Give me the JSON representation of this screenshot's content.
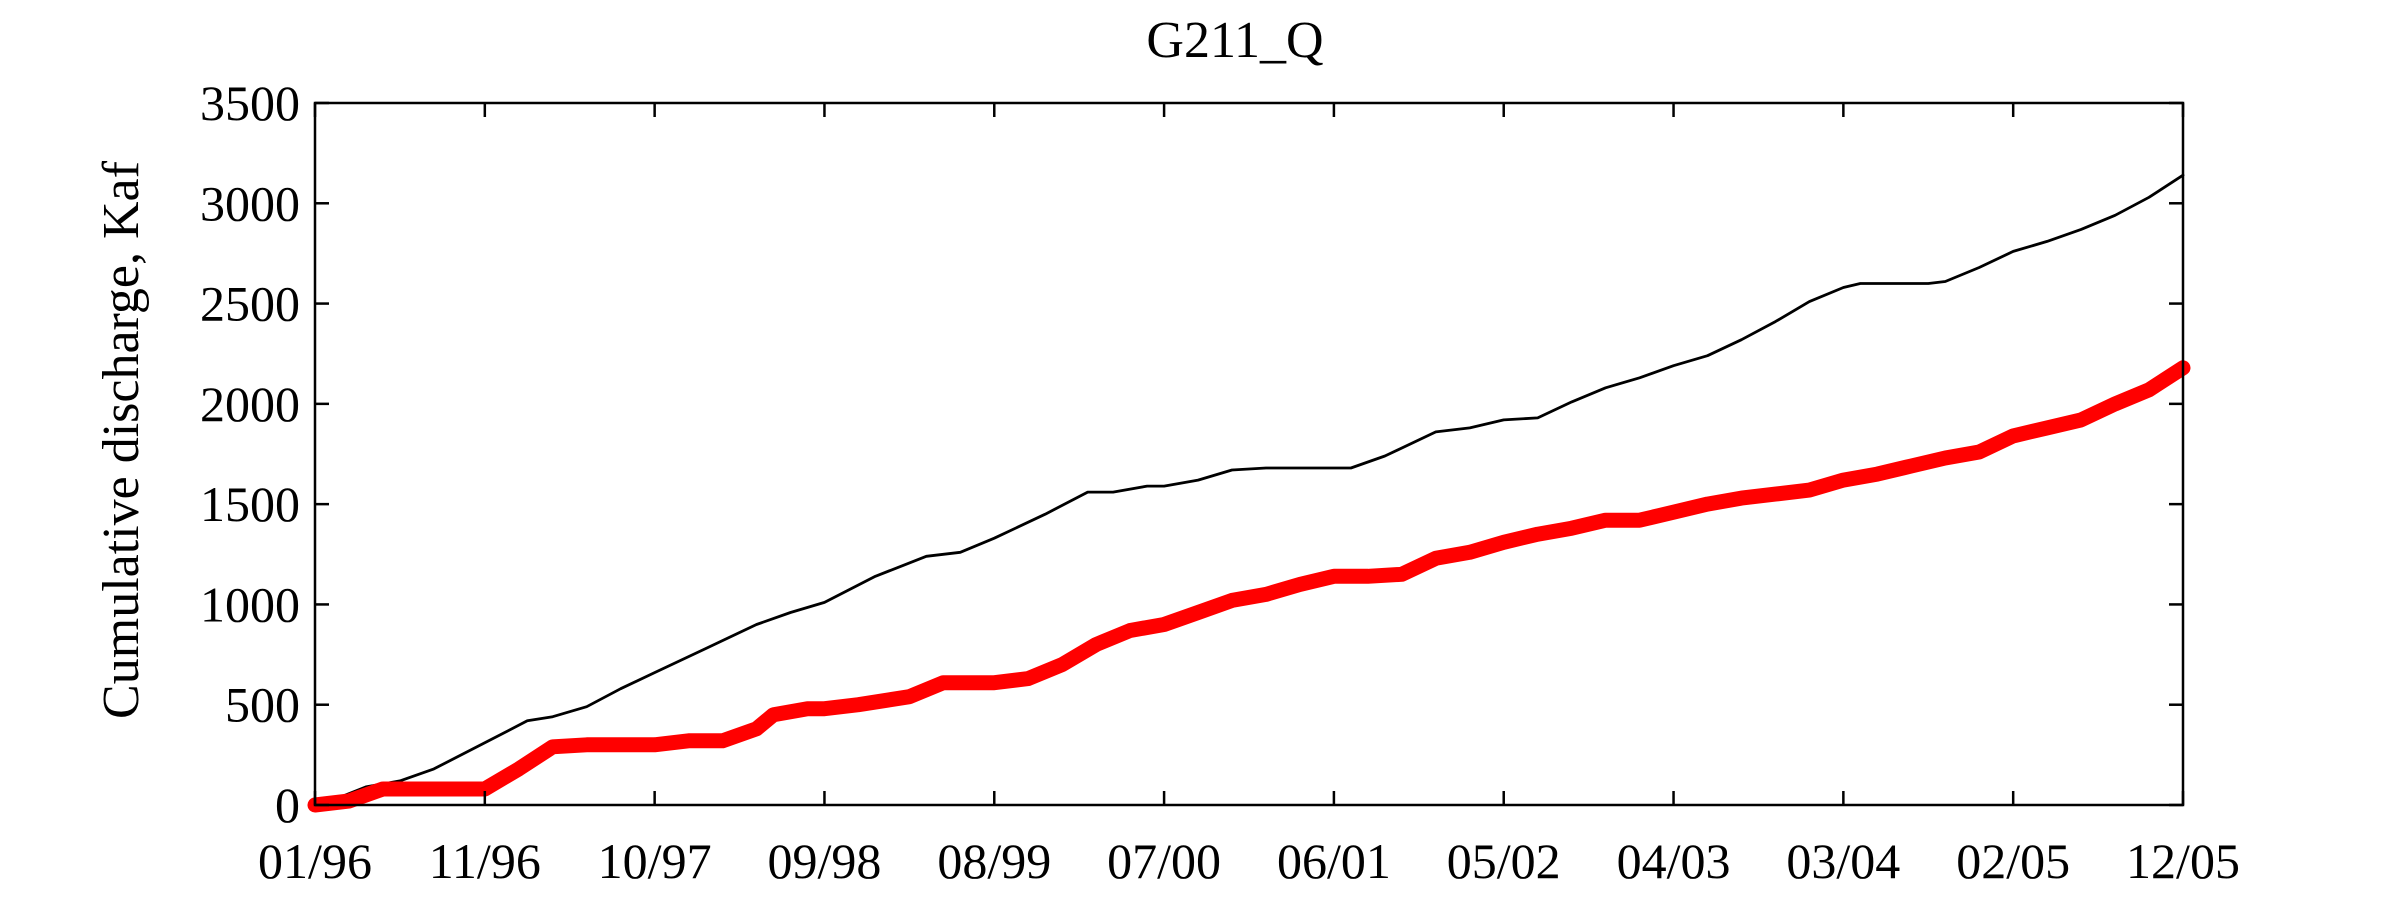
{
  "chart_data": {
    "type": "line",
    "title": "G211_Q",
    "xlabel": "",
    "ylabel": "Cumulative discharge, Kaf",
    "x_tick_labels": [
      "01/96",
      "11/96",
      "10/97",
      "09/98",
      "08/99",
      "07/00",
      "06/01",
      "05/02",
      "04/03",
      "03/04",
      "02/05",
      "12/05"
    ],
    "y_ticks": [
      0,
      500,
      1000,
      1500,
      2000,
      2500,
      3000,
      3500
    ],
    "xlim": [
      0,
      11
    ],
    "ylim": [
      0,
      3500
    ],
    "grid": false,
    "series": [
      {
        "color": "#000000",
        "x": [
          0,
          0.15,
          0.3,
          0.5,
          0.7,
          1.0,
          1.25,
          1.4,
          1.6,
          1.8,
          2.0,
          2.3,
          2.6,
          2.8,
          3.0,
          3.3,
          3.6,
          3.8,
          4.0,
          4.3,
          4.55,
          4.7,
          4.9,
          5.0,
          5.2,
          5.4,
          5.6,
          5.8,
          6.0,
          6.1,
          6.3,
          6.6,
          6.8,
          7.0,
          7.2,
          7.4,
          7.6,
          7.8,
          8.0,
          8.2,
          8.4,
          8.6,
          8.8,
          9.0,
          9.1,
          9.3,
          9.5,
          9.6,
          9.8,
          10.0,
          10.2,
          10.4,
          10.6,
          10.8,
          11.0
        ],
        "y": [
          0,
          40,
          90,
          120,
          180,
          310,
          420,
          440,
          490,
          580,
          660,
          780,
          900,
          960,
          1010,
          1140,
          1240,
          1260,
          1330,
          1450,
          1560,
          1560,
          1590,
          1590,
          1620,
          1670,
          1680,
          1680,
          1680,
          1680,
          1740,
          1860,
          1880,
          1920,
          1930,
          2010,
          2080,
          2130,
          2190,
          2240,
          2320,
          2410,
          2510,
          2580,
          2600,
          2600,
          2600,
          2610,
          2680,
          2760,
          2810,
          2870,
          2940,
          3030,
          3140
        ]
      },
      {
        "color": "#ff0000",
        "x": [
          0,
          0.2,
          0.4,
          0.6,
          0.8,
          1.0,
          1.2,
          1.4,
          1.6,
          1.8,
          2.0,
          2.2,
          2.4,
          2.6,
          2.7,
          2.9,
          3.0,
          3.2,
          3.5,
          3.7,
          3.9,
          4.0,
          4.2,
          4.4,
          4.6,
          4.8,
          5.0,
          5.2,
          5.4,
          5.6,
          5.8,
          6.0,
          6.2,
          6.4,
          6.6,
          6.8,
          7.0,
          7.2,
          7.4,
          7.6,
          7.8,
          8.0,
          8.2,
          8.4,
          8.6,
          8.8,
          9.0,
          9.2,
          9.4,
          9.6,
          9.8,
          10.0,
          10.2,
          10.4,
          10.6,
          10.8,
          11.0
        ],
        "y": [
          0,
          20,
          80,
          80,
          80,
          80,
          180,
          290,
          300,
          300,
          300,
          320,
          320,
          380,
          450,
          480,
          480,
          500,
          540,
          610,
          610,
          610,
          630,
          700,
          800,
          870,
          900,
          960,
          1020,
          1050,
          1100,
          1140,
          1140,
          1150,
          1230,
          1260,
          1310,
          1350,
          1380,
          1420,
          1420,
          1460,
          1500,
          1530,
          1550,
          1570,
          1620,
          1650,
          1690,
          1730,
          1760,
          1840,
          1880,
          1920,
          2000,
          2070,
          2180
        ]
      }
    ]
  }
}
